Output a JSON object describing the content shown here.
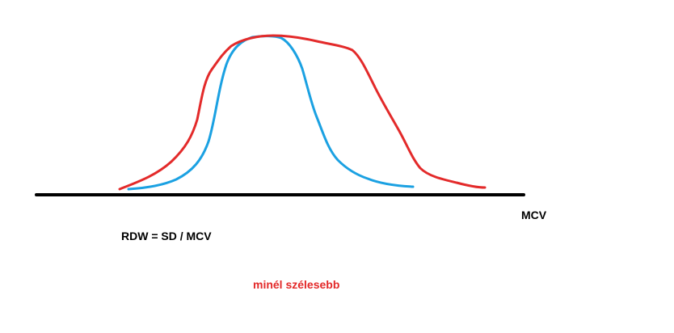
{
  "diagram": {
    "axis_label": "MCV",
    "formula": "RDW = SD / MCV",
    "note": "minél szélesebb",
    "colors": {
      "axis": "#000000",
      "narrow_curve": "#1ba1e2",
      "wide_curve": "#e32a2a",
      "note_text": "#e32a2a"
    }
  }
}
